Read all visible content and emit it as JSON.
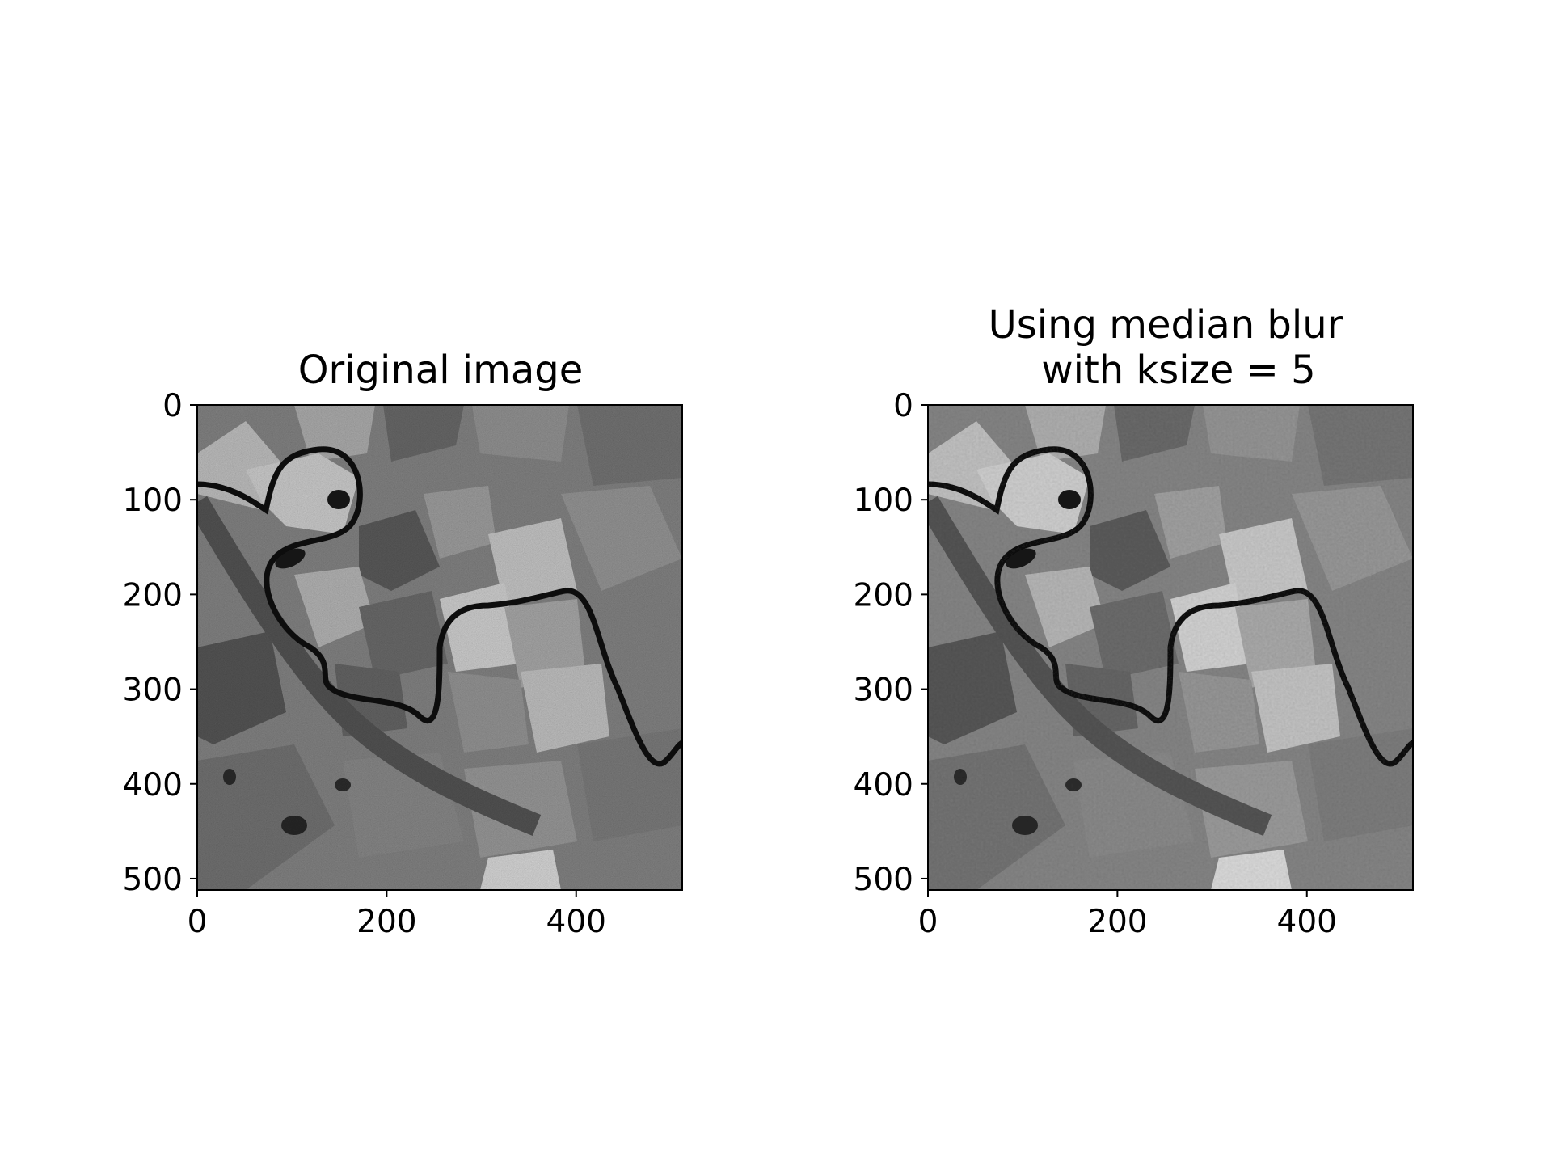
{
  "chart_data": [
    {
      "type": "heatmap",
      "title": "Original image",
      "colormap": "gray",
      "image_size": [
        512,
        512
      ],
      "xlim": [
        0,
        512
      ],
      "ylim": [
        512,
        0
      ],
      "xticks": [
        0,
        200,
        400
      ],
      "yticks": [
        0,
        100,
        200,
        300,
        400,
        500
      ],
      "grid": false,
      "noise": "high"
    },
    {
      "type": "heatmap",
      "title_lines": [
        "Using median blur",
        "with ksize = 5"
      ],
      "colormap": "gray",
      "image_size": [
        512,
        512
      ],
      "xlim": [
        0,
        512
      ],
      "ylim": [
        512,
        0
      ],
      "xticks": [
        0,
        200,
        400
      ],
      "yticks": [
        0,
        100,
        200,
        300,
        400,
        500
      ],
      "grid": false,
      "noise": "low"
    }
  ]
}
